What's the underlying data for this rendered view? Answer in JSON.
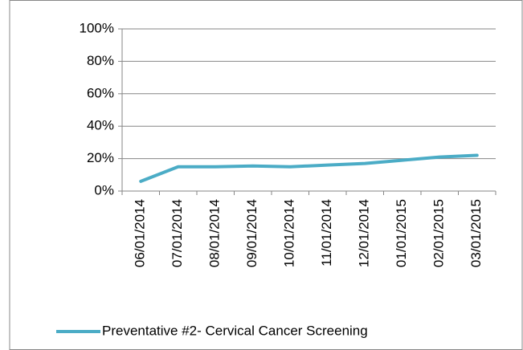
{
  "chart_data": {
    "type": "line",
    "categories": [
      "06/01/2014",
      "07/01/2014",
      "08/01/2014",
      "09/01/2014",
      "10/01/2014",
      "11/01/2014",
      "12/01/2014",
      "01/01/2015",
      "02/01/2015",
      "03/01/2015"
    ],
    "series": [
      {
        "name": "Preventative #2- Cervical Cancer Screening",
        "color": "#4bacc6",
        "values": [
          6,
          15,
          15,
          15.5,
          15,
          16,
          17,
          19,
          21,
          22
        ]
      }
    ],
    "ylim": [
      0,
      100
    ],
    "yticks": [
      {
        "value": 0,
        "label": "0%"
      },
      {
        "value": 20,
        "label": "20%"
      },
      {
        "value": 40,
        "label": "40%"
      },
      {
        "value": 60,
        "label": "60%"
      },
      {
        "value": 80,
        "label": "80%"
      },
      {
        "value": 100,
        "label": "100%"
      }
    ],
    "grid": true,
    "legend": "bottom"
  }
}
